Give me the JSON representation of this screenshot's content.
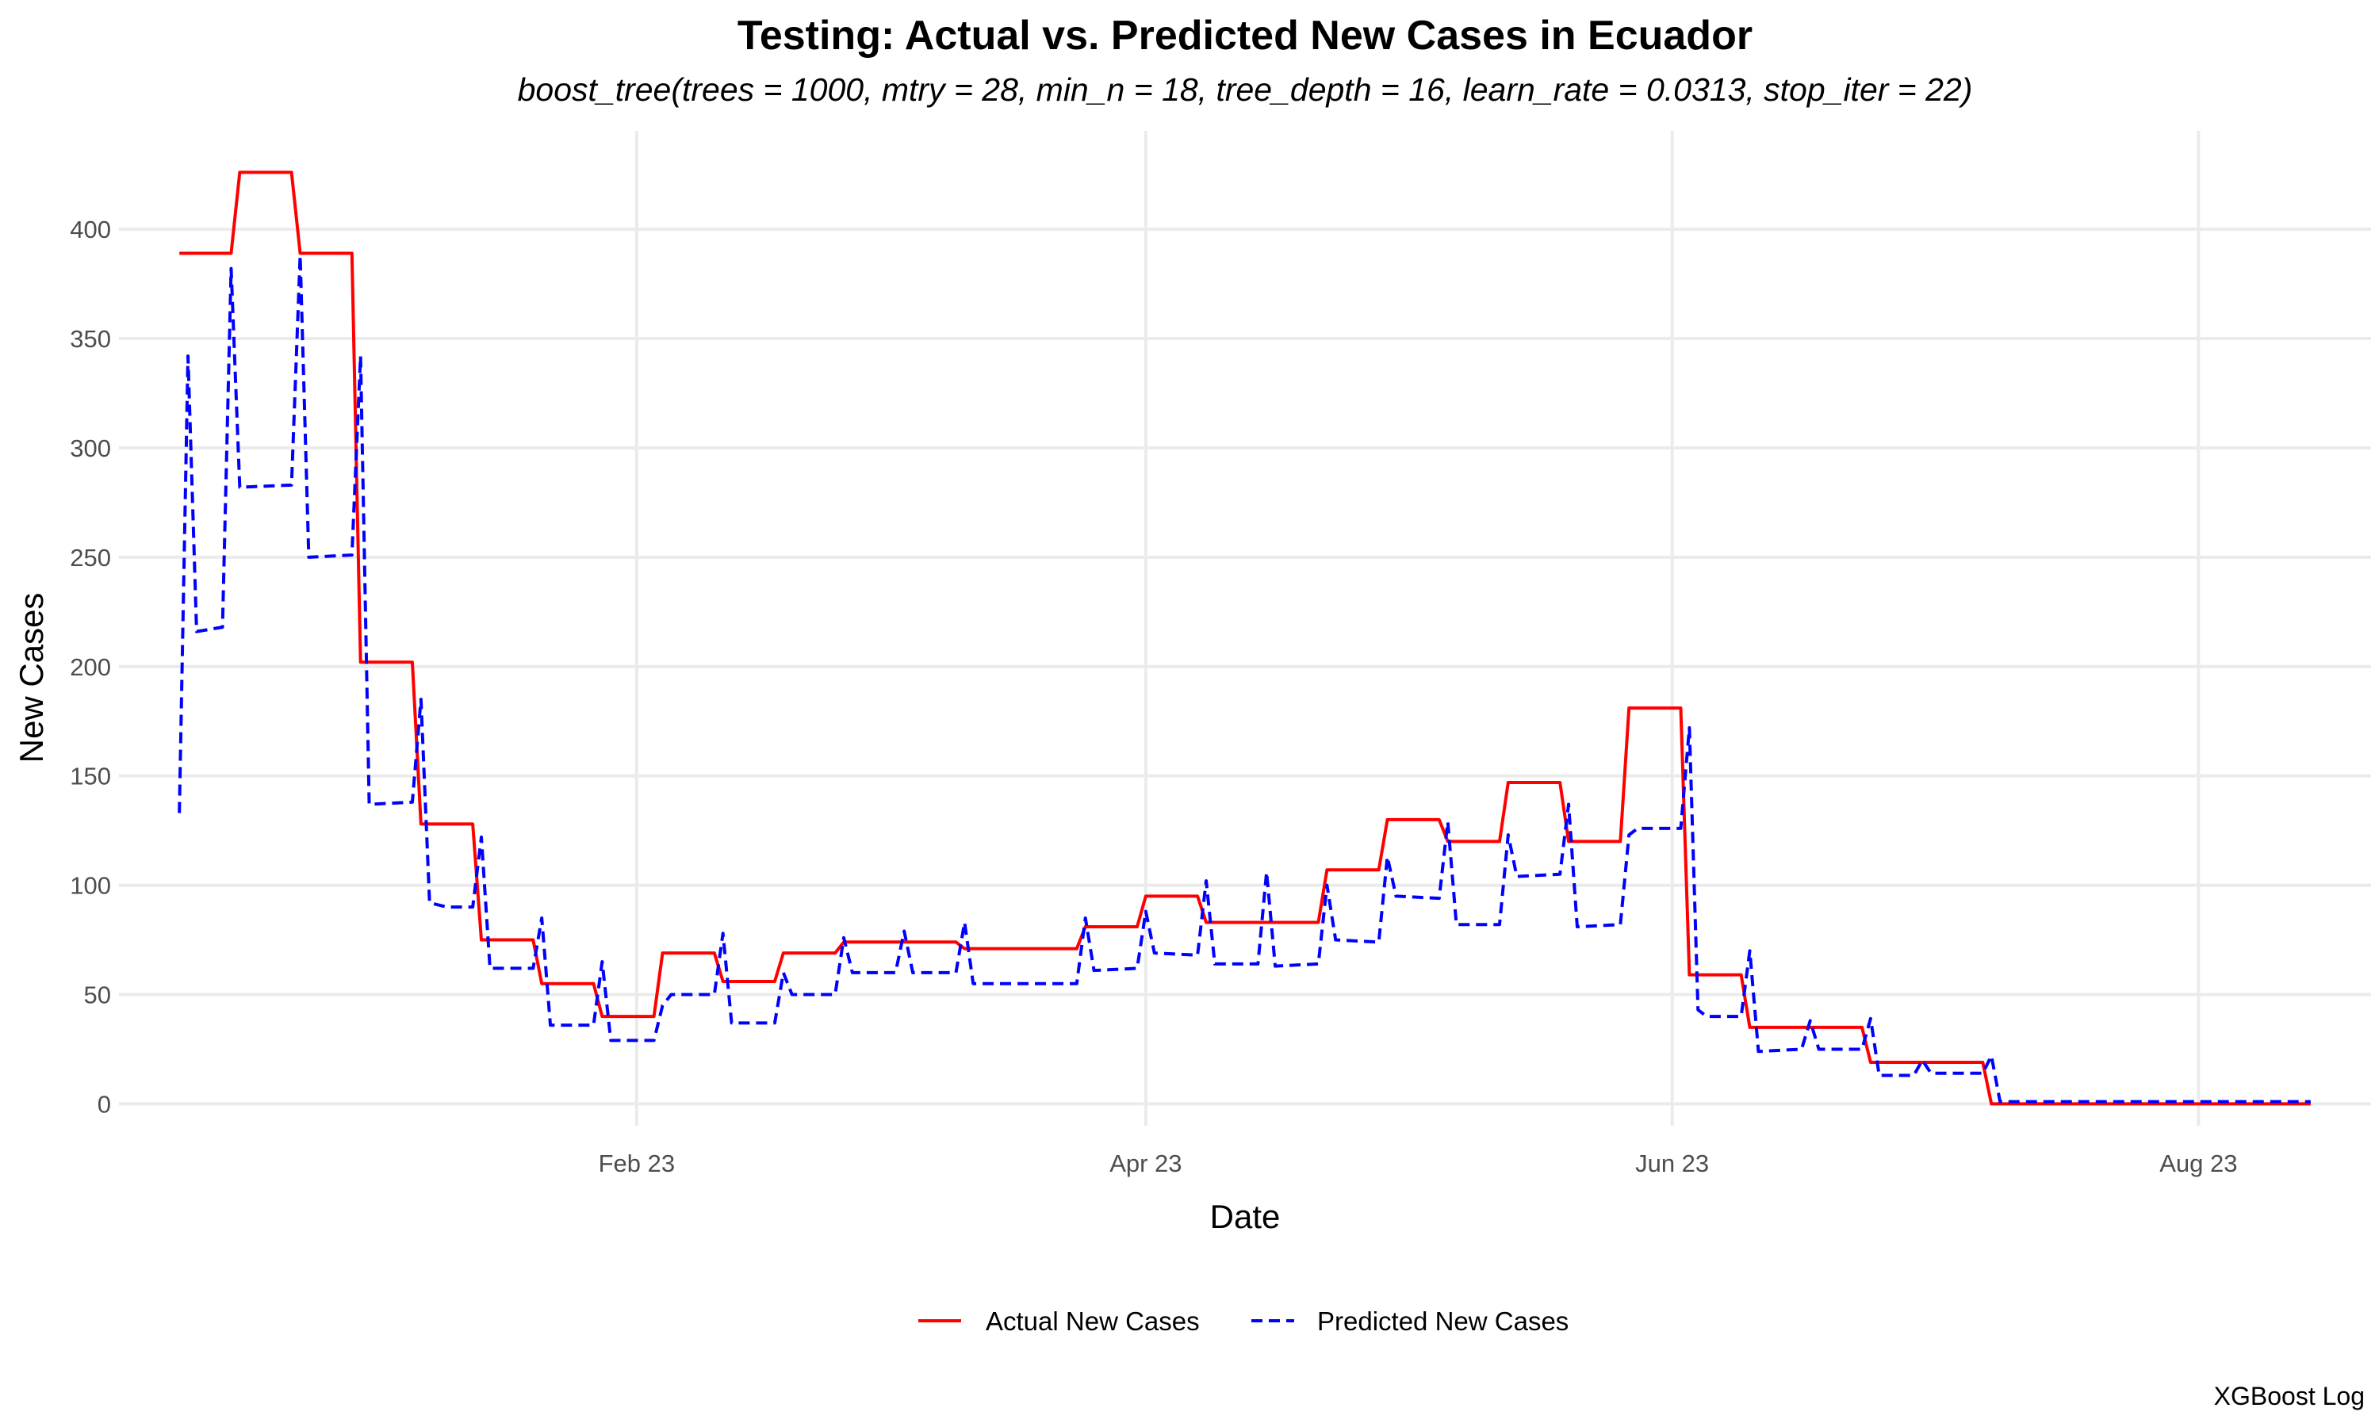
{
  "chart_data": {
    "type": "line",
    "title": "Testing: Actual vs. Predicted New Cases in Ecuador",
    "subtitle": "boost_tree(trees = 1000, mtry = 28, min_n = 18, tree_depth = 16, learn_rate = 0.0313, stop_iter = 22)",
    "xlabel": "Date",
    "ylabel": "New Cases",
    "caption": "XGBoost Log",
    "x_range": [
      "2023-01-01",
      "2023-09-05"
    ],
    "xlim": [
      "2022-12-25",
      "2023-09-12"
    ],
    "ylim": [
      -10,
      445
    ],
    "x_ticks": [
      {
        "date": "2023-02-23",
        "label": "Feb 23"
      },
      {
        "date": "2023-04-23",
        "label": "Apr 23"
      },
      {
        "date": "2023-06-23",
        "label": "Jun 23"
      },
      {
        "date": "2023-08-23",
        "label": "Aug 23"
      }
    ],
    "y_ticks": [
      0,
      50,
      100,
      150,
      200,
      250,
      300,
      350,
      400
    ],
    "grid": true,
    "legend": {
      "position": "bottom"
    },
    "series": [
      {
        "name": "Actual New Cases",
        "color": "#ff0000",
        "dash": "solid",
        "points": [
          [
            "2023-01-01",
            389
          ],
          [
            "2023-01-07",
            389
          ],
          [
            "2023-01-08",
            426
          ],
          [
            "2023-01-14",
            426
          ],
          [
            "2023-01-15",
            389
          ],
          [
            "2023-01-21",
            389
          ],
          [
            "2023-01-22",
            202
          ],
          [
            "2023-01-28",
            202
          ],
          [
            "2023-01-29",
            128
          ],
          [
            "2023-02-04",
            128
          ],
          [
            "2023-02-05",
            75
          ],
          [
            "2023-02-11",
            75
          ],
          [
            "2023-02-12",
            55
          ],
          [
            "2023-02-18",
            55
          ],
          [
            "2023-02-19",
            40
          ],
          [
            "2023-02-25",
            40
          ],
          [
            "2023-02-26",
            69
          ],
          [
            "2023-03-04",
            69
          ],
          [
            "2023-03-05",
            56
          ],
          [
            "2023-03-11",
            56
          ],
          [
            "2023-03-12",
            69
          ],
          [
            "2023-03-18",
            69
          ],
          [
            "2023-03-19",
            74
          ],
          [
            "2023-04-01",
            74
          ],
          [
            "2023-04-02",
            71
          ],
          [
            "2023-04-15",
            71
          ],
          [
            "2023-04-16",
            81
          ],
          [
            "2023-04-22",
            81
          ],
          [
            "2023-04-23",
            95
          ],
          [
            "2023-04-29",
            95
          ],
          [
            "2023-04-30",
            83
          ],
          [
            "2023-05-13",
            83
          ],
          [
            "2023-05-14",
            107
          ],
          [
            "2023-05-20",
            107
          ],
          [
            "2023-05-21",
            130
          ],
          [
            "2023-05-27",
            130
          ],
          [
            "2023-05-28",
            120
          ],
          [
            "2023-06-03",
            120
          ],
          [
            "2023-06-04",
            147
          ],
          [
            "2023-06-10",
            147
          ],
          [
            "2023-06-11",
            120
          ],
          [
            "2023-06-17",
            120
          ],
          [
            "2023-06-18",
            181
          ],
          [
            "2023-06-24",
            181
          ],
          [
            "2023-06-25",
            59
          ],
          [
            "2023-07-01",
            59
          ],
          [
            "2023-07-02",
            35
          ],
          [
            "2023-07-15",
            35
          ],
          [
            "2023-07-16",
            19
          ],
          [
            "2023-07-29",
            19
          ],
          [
            "2023-07-30",
            0
          ],
          [
            "2023-09-05",
            0
          ]
        ]
      },
      {
        "name": "Predicted New Cases",
        "color": "#0000ff",
        "dash": "dashed",
        "points": [
          [
            "2023-01-01",
            133
          ],
          [
            "2023-01-02",
            342
          ],
          [
            "2023-01-03",
            216
          ],
          [
            "2023-01-06",
            218
          ],
          [
            "2023-01-07",
            382
          ],
          [
            "2023-01-08",
            282
          ],
          [
            "2023-01-14",
            283
          ],
          [
            "2023-01-15",
            388
          ],
          [
            "2023-01-16",
            250
          ],
          [
            "2023-01-21",
            251
          ],
          [
            "2023-01-22",
            342
          ],
          [
            "2023-01-23",
            137
          ],
          [
            "2023-01-28",
            138
          ],
          [
            "2023-01-29",
            185
          ],
          [
            "2023-01-30",
            92
          ],
          [
            "2023-02-01",
            90
          ],
          [
            "2023-02-04",
            90
          ],
          [
            "2023-02-05",
            122
          ],
          [
            "2023-02-06",
            62
          ],
          [
            "2023-02-11",
            62
          ],
          [
            "2023-02-12",
            85
          ],
          [
            "2023-02-13",
            36
          ],
          [
            "2023-02-18",
            36
          ],
          [
            "2023-02-19",
            65
          ],
          [
            "2023-02-20",
            29
          ],
          [
            "2023-02-25",
            29
          ],
          [
            "2023-02-26",
            45
          ],
          [
            "2023-02-27",
            50
          ],
          [
            "2023-03-04",
            50
          ],
          [
            "2023-03-05",
            78
          ],
          [
            "2023-03-06",
            37
          ],
          [
            "2023-03-11",
            37
          ],
          [
            "2023-03-12",
            60
          ],
          [
            "2023-03-13",
            50
          ],
          [
            "2023-03-18",
            50
          ],
          [
            "2023-03-19",
            76
          ],
          [
            "2023-03-20",
            60
          ],
          [
            "2023-03-25",
            60
          ],
          [
            "2023-03-26",
            79
          ],
          [
            "2023-03-27",
            60
          ],
          [
            "2023-04-01",
            60
          ],
          [
            "2023-04-02",
            83
          ],
          [
            "2023-04-03",
            55
          ],
          [
            "2023-04-15",
            55
          ],
          [
            "2023-04-16",
            85
          ],
          [
            "2023-04-17",
            61
          ],
          [
            "2023-04-22",
            62
          ],
          [
            "2023-04-23",
            88
          ],
          [
            "2023-04-24",
            69
          ],
          [
            "2023-04-29",
            68
          ],
          [
            "2023-04-30",
            102
          ],
          [
            "2023-05-01",
            64
          ],
          [
            "2023-05-06",
            64
          ],
          [
            "2023-05-07",
            106
          ],
          [
            "2023-05-08",
            63
          ],
          [
            "2023-05-13",
            64
          ],
          [
            "2023-05-14",
            100
          ],
          [
            "2023-05-15",
            75
          ],
          [
            "2023-05-20",
            74
          ],
          [
            "2023-05-21",
            113
          ],
          [
            "2023-05-22",
            95
          ],
          [
            "2023-05-27",
            94
          ],
          [
            "2023-05-28",
            129
          ],
          [
            "2023-05-29",
            82
          ],
          [
            "2023-06-03",
            82
          ],
          [
            "2023-06-04",
            123
          ],
          [
            "2023-06-05",
            104
          ],
          [
            "2023-06-10",
            105
          ],
          [
            "2023-06-11",
            137
          ],
          [
            "2023-06-12",
            81
          ],
          [
            "2023-06-17",
            82
          ],
          [
            "2023-06-18",
            123
          ],
          [
            "2023-06-19",
            126
          ],
          [
            "2023-06-24",
            126
          ],
          [
            "2023-06-25",
            172
          ],
          [
            "2023-06-26",
            43
          ],
          [
            "2023-06-27",
            40
          ],
          [
            "2023-07-01",
            40
          ],
          [
            "2023-07-02",
            70
          ],
          [
            "2023-07-03",
            24
          ],
          [
            "2023-07-08",
            25
          ],
          [
            "2023-07-09",
            38
          ],
          [
            "2023-07-10",
            25
          ],
          [
            "2023-07-15",
            25
          ],
          [
            "2023-07-16",
            39
          ],
          [
            "2023-07-17",
            13
          ],
          [
            "2023-07-21",
            13
          ],
          [
            "2023-07-22",
            20
          ],
          [
            "2023-07-23",
            14
          ],
          [
            "2023-07-29",
            14
          ],
          [
            "2023-07-30",
            22
          ],
          [
            "2023-07-31",
            1
          ],
          [
            "2023-09-05",
            1
          ]
        ]
      }
    ]
  }
}
